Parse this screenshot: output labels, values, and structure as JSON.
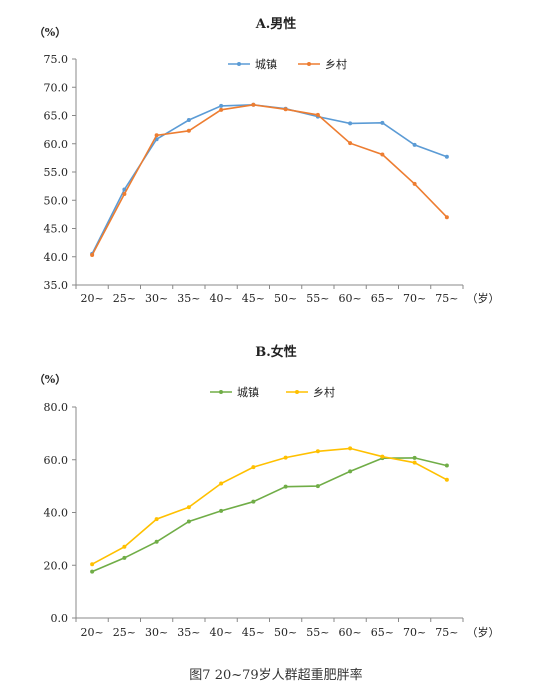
{
  "figure_caption": "图7   20~79岁人群超重肥胖率",
  "chart_data": [
    {
      "type": "line",
      "title": "A.男性",
      "ylabel": "（%）",
      "xlabel": "（岁）",
      "ylim": [
        35,
        75
      ],
      "yticks": [
        "35.0",
        "40.0",
        "45.0",
        "50.0",
        "55.0",
        "60.0",
        "65.0",
        "70.0",
        "75.0"
      ],
      "categories": [
        "20~",
        "25~",
        "30~",
        "35~",
        "40~",
        "45~",
        "50~",
        "55~",
        "60~",
        "65~",
        "70~",
        "75~"
      ],
      "legend_position": "top-center",
      "series": [
        {
          "name": "城镇",
          "color": "#5b9bd5",
          "values": [
            40.5,
            51.9,
            60.8,
            64.2,
            66.7,
            66.9,
            66.2,
            64.8,
            63.6,
            63.7,
            59.8,
            57.7
          ]
        },
        {
          "name": "乡村",
          "color": "#ed7d31",
          "values": [
            40.3,
            51.1,
            61.5,
            62.3,
            66.0,
            66.9,
            66.1,
            65.1,
            60.1,
            58.1,
            52.9,
            47.0
          ]
        }
      ]
    },
    {
      "type": "line",
      "title": "B.女性",
      "ylabel": "（%）",
      "xlabel": "（岁）",
      "ylim": [
        0,
        80
      ],
      "yticks": [
        "0.0",
        "20.0",
        "40.0",
        "60.0",
        "80.0"
      ],
      "categories": [
        "20~",
        "25~",
        "30~",
        "35~",
        "40~",
        "45~",
        "50~",
        "55~",
        "60~",
        "65~",
        "70~",
        "75~"
      ],
      "legend_position": "top-center",
      "series": [
        {
          "name": "城镇",
          "color": "#70ad47",
          "values": [
            17.6,
            22.8,
            28.9,
            36.6,
            40.6,
            44.1,
            49.8,
            50.0,
            55.6,
            60.6,
            60.7,
            57.8
          ]
        },
        {
          "name": "乡村",
          "color": "#ffc000",
          "values": [
            20.4,
            27.0,
            37.5,
            42.0,
            51.0,
            57.2,
            60.8,
            63.2,
            64.3,
            61.2,
            58.9,
            52.4
          ]
        }
      ]
    }
  ]
}
